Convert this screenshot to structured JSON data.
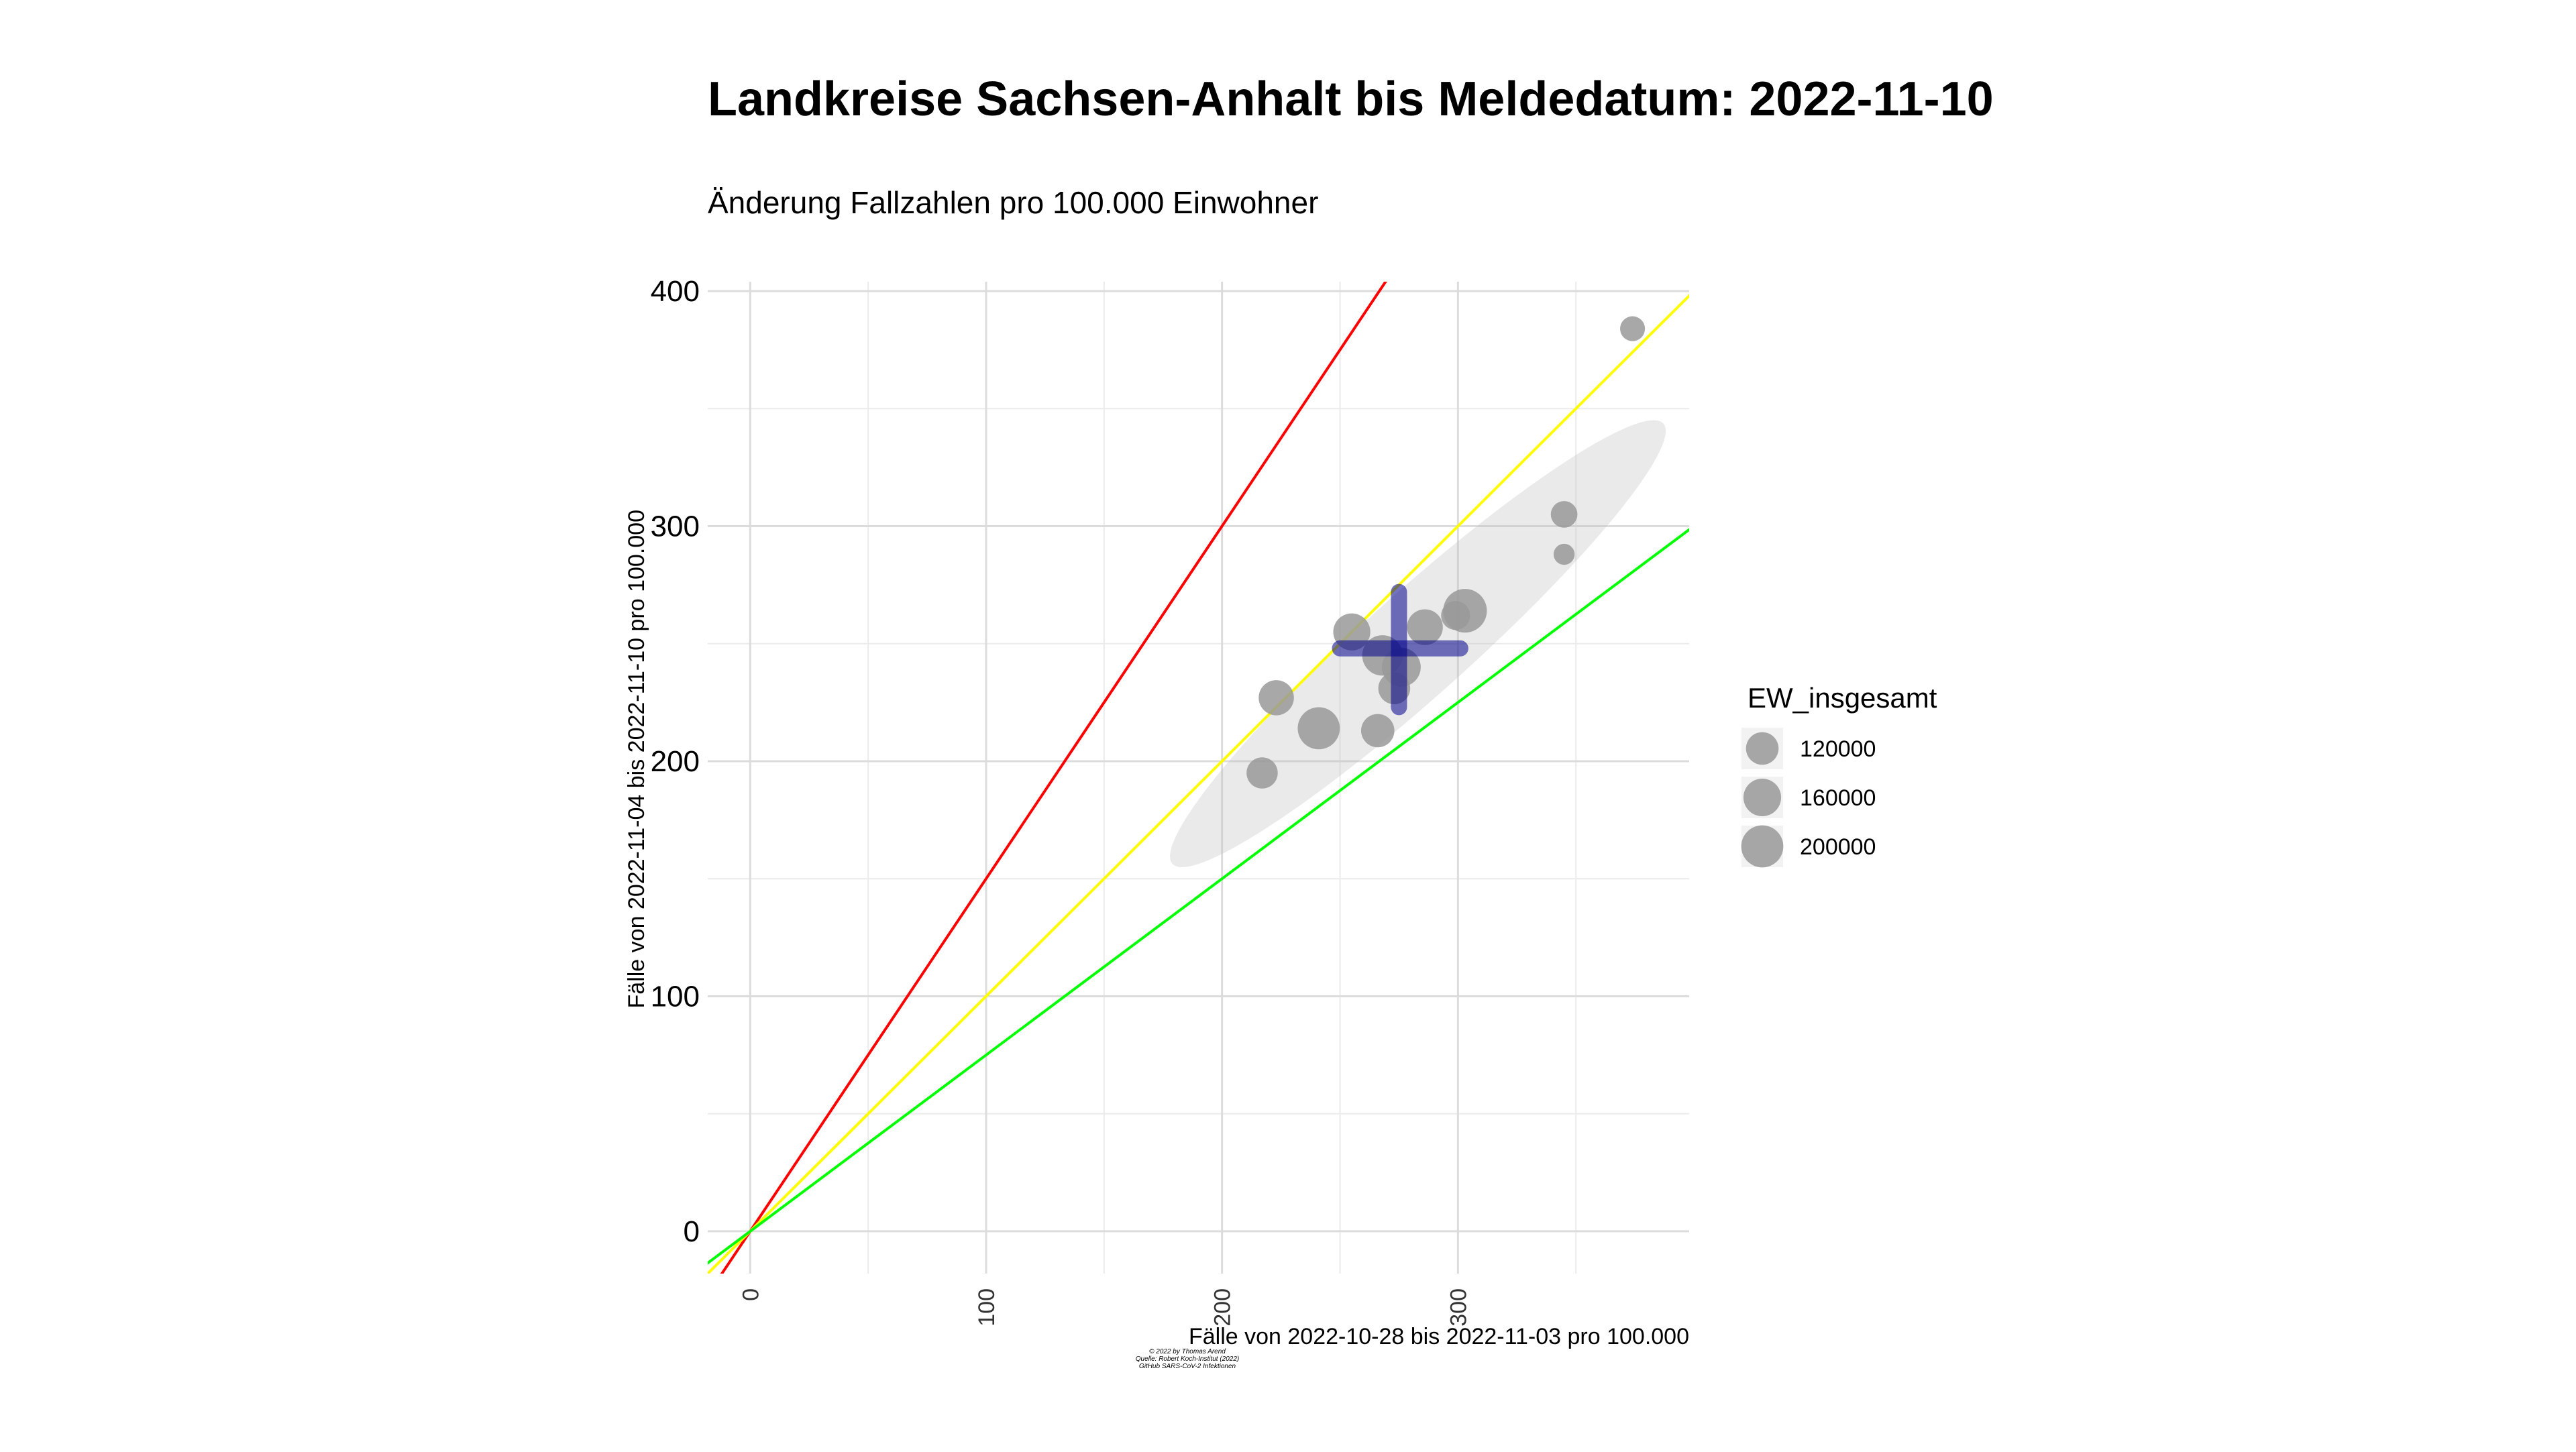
{
  "chart_data": {
    "type": "scatter",
    "title": "Landkreise Sachsen-Anhalt bis Meldedatum: 2022-11-10",
    "subtitle": "Änderung Fallzahlen pro 100.000 Einwohner",
    "xlabel": "Fälle von 2022-10-28 bis 2022-11-03 pro 100.000",
    "ylabel": "Fälle von 2022-11-04 bis 2022-11-10 pro 100.000",
    "xlim": [
      -18,
      398
    ],
    "ylim": [
      -18,
      404
    ],
    "x_ticks": [
      0,
      100,
      200,
      300
    ],
    "x_tick_labels": [
      "0",
      "100",
      "200",
      "300"
    ],
    "y_ticks": [
      0,
      100,
      200,
      300,
      400
    ],
    "y_tick_labels": [
      "0",
      "100",
      "200",
      "300",
      "400"
    ],
    "grid": true,
    "legend": {
      "title": "EW_insgesamt",
      "placement": "right",
      "entries": [
        {
          "label": "120000",
          "value": 120000
        },
        {
          "label": "160000",
          "value": 160000
        },
        {
          "label": "200000",
          "value": 200000
        }
      ]
    },
    "points": [
      {
        "x": 217,
        "y": 195,
        "ew": 110000
      },
      {
        "x": 223,
        "y": 227,
        "ew": 140000
      },
      {
        "x": 241,
        "y": 214,
        "ew": 200000
      },
      {
        "x": 255,
        "y": 255,
        "ew": 155000
      },
      {
        "x": 266,
        "y": 213,
        "ew": 125000
      },
      {
        "x": 268,
        "y": 245,
        "ew": 185000
      },
      {
        "x": 273,
        "y": 231,
        "ew": 115000
      },
      {
        "x": 276,
        "y": 240,
        "ew": 170000
      },
      {
        "x": 286,
        "y": 257,
        "ew": 145000
      },
      {
        "x": 299,
        "y": 262,
        "ew": 95000
      },
      {
        "x": 303,
        "y": 264,
        "ew": 215000
      },
      {
        "x": 345,
        "y": 305,
        "ew": 80000
      },
      {
        "x": 345,
        "y": 288,
        "ew": 50000
      },
      {
        "x": 374,
        "y": 384,
        "ew": 70000
      }
    ],
    "reference_lines": [
      {
        "name": "red",
        "slope": 1.5,
        "color": "#ff0000"
      },
      {
        "name": "yellow",
        "slope": 1.0,
        "color": "#ffff00"
      },
      {
        "name": "green",
        "slope": 0.75,
        "color": "#00ff00"
      }
    ],
    "mean_cross": {
      "x": 275,
      "y": 248,
      "x_range": [
        250,
        301
      ],
      "y_range": [
        223,
        272
      ],
      "color": "#00008b"
    },
    "ellipse": {
      "center": [
        283,
        250
      ],
      "semi_axis_along": 140,
      "semi_axis_across": 22,
      "angle_deg": 42,
      "color": "#bebebe"
    },
    "caption_lines": [
      "© 2022 by Thomas Arend",
      "Quelle: Robert Koch-Institut (2022)",
      "GitHub SARS-CoV-2 Infektionen"
    ]
  }
}
